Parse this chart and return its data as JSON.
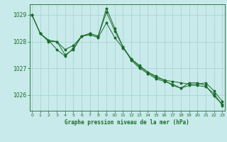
{
  "title": "Graphe pression niveau de la mer (hPa)",
  "bg_color": "#c8eaea",
  "grid_color": "#aad4d4",
  "line_color": "#1a6b2a",
  "marker": "*",
  "xlim": [
    -0.3,
    23.3
  ],
  "ylim": [
    1025.4,
    1029.4
  ],
  "yticks": [
    1026,
    1027,
    1028,
    1029
  ],
  "xticks": [
    0,
    1,
    2,
    3,
    4,
    5,
    6,
    7,
    8,
    9,
    10,
    11,
    12,
    13,
    14,
    15,
    16,
    17,
    18,
    19,
    20,
    21,
    22,
    23
  ],
  "series": [
    [
      1029.0,
      1028.3,
      1028.0,
      1028.0,
      1027.7,
      1027.85,
      1028.2,
      1028.25,
      1028.15,
      1028.7,
      1028.15,
      1027.75,
      1027.35,
      1027.05,
      1026.85,
      1026.65,
      1026.55,
      1026.5,
      1026.45,
      1026.4,
      1026.4,
      1026.45,
      1026.15,
      1025.75
    ],
    [
      1029.0,
      1028.3,
      1028.05,
      1028.0,
      1027.5,
      1027.7,
      1028.2,
      1028.3,
      1028.2,
      1029.1,
      1028.4,
      1027.8,
      1027.3,
      1027.0,
      1026.8,
      1026.6,
      1026.5,
      1026.4,
      1026.25,
      1026.35,
      1026.35,
      1026.3,
      1026.05,
      1025.6
    ],
    [
      1029.0,
      1028.3,
      1028.05,
      1027.7,
      1027.45,
      1027.75,
      1028.2,
      1028.3,
      1028.2,
      1029.25,
      1028.5,
      1027.8,
      1027.35,
      1027.1,
      1026.85,
      1026.7,
      1026.55,
      1026.35,
      1026.25,
      1026.45,
      1026.45,
      1026.35,
      1025.95,
      1025.65
    ]
  ]
}
